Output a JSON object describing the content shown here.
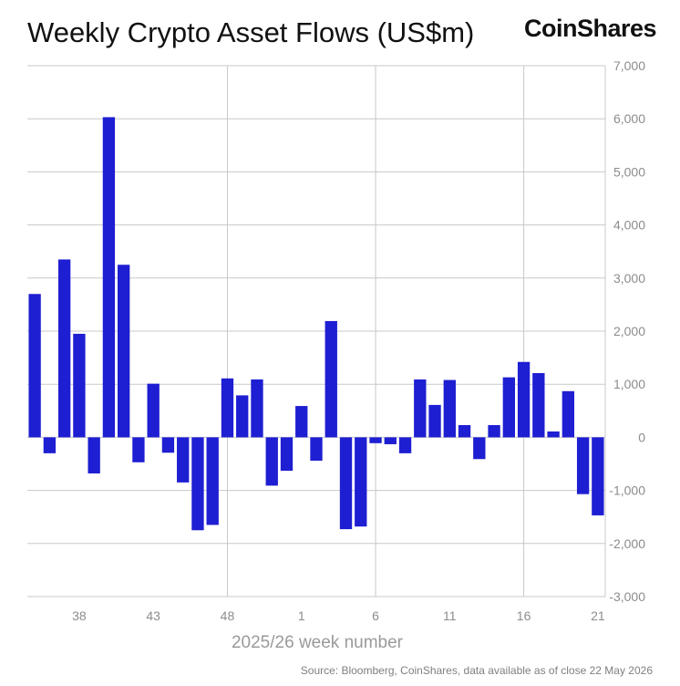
{
  "header": {
    "title": "Weekly Crypto Asset Flows (US$m)",
    "logo_text": "CoinShares"
  },
  "footer": {
    "source": "Source: Bloomberg, CoinShares, data available as of close 22 May 2026"
  },
  "colors": {
    "bar": "#1e1ed2",
    "grid": "#c8c8c8",
    "text": "#8c8c8c"
  },
  "chart_data": {
    "type": "bar",
    "title": "Weekly Crypto Asset Flows (US$m)",
    "xlabel": "2025/26 week number",
    "ylabel": "",
    "ylim": [
      -3000,
      7000
    ],
    "yticks": [
      7000,
      6000,
      5000,
      4000,
      3000,
      2000,
      1000,
      0,
      -1000,
      -2000,
      -3000
    ],
    "ytick_labels": [
      "7,000",
      "6,000",
      "5,000",
      "4,000",
      "3,000",
      "2,000",
      "1,000",
      "0",
      "-1,000",
      "-2,000",
      "-3,000"
    ],
    "y_axis_position": "right",
    "grid": true,
    "categories": [
      "35",
      "36",
      "37",
      "38",
      "39",
      "40",
      "41",
      "42",
      "43",
      "44",
      "45",
      "46",
      "47",
      "48",
      "49",
      "50",
      "51",
      "52",
      "1",
      "2",
      "3",
      "4",
      "5",
      "6",
      "7",
      "8",
      "9",
      "10",
      "11",
      "12",
      "13",
      "14",
      "15",
      "16",
      "17",
      "18",
      "19",
      "20",
      "21"
    ],
    "xtick_labels": [
      "38",
      "43",
      "48",
      "1",
      "6",
      "11",
      "16",
      "21"
    ],
    "values": [
      2700,
      -300,
      3350,
      1950,
      -680,
      6030,
      3250,
      -470,
      1010,
      -290,
      -850,
      -1750,
      -1650,
      1110,
      790,
      1090,
      -910,
      -630,
      590,
      -440,
      2190,
      -1730,
      -1680,
      -110,
      -130,
      -300,
      1090,
      610,
      1080,
      230,
      -410,
      230,
      1130,
      1420,
      1210,
      110,
      870,
      -1070,
      -1470
    ]
  }
}
